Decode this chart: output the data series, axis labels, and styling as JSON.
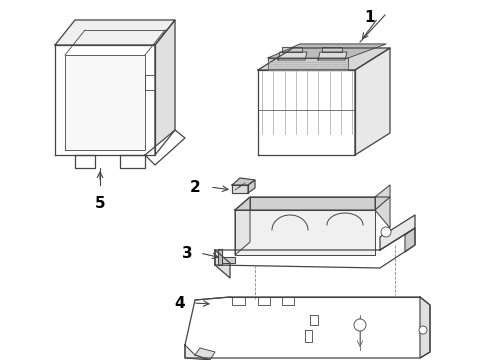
{
  "background_color": "#ffffff",
  "line_color": "#444444",
  "label_color": "#000000",
  "label_fontsize": 10,
  "figsize": [
    4.9,
    3.6
  ],
  "dpi": 100
}
